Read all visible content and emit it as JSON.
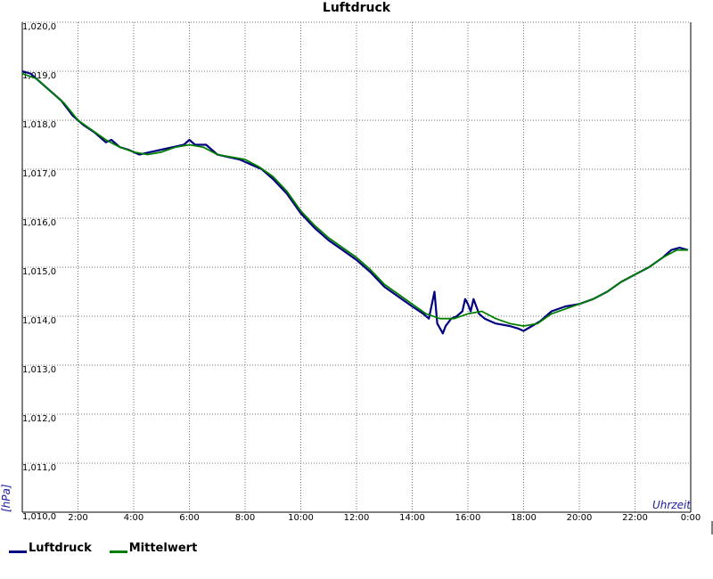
{
  "chart_data": {
    "type": "line",
    "title": "Luftdruck",
    "xlabel": "Uhrzeit",
    "ylabel": "[hPa]",
    "xlim": [
      0,
      24
    ],
    "ylim": [
      1010.0,
      1020.0
    ],
    "grid": true,
    "legend_position": "bottom-left",
    "x_ticks": [
      {
        "value": 2,
        "label": "2:00"
      },
      {
        "value": 4,
        "label": "4:00"
      },
      {
        "value": 6,
        "label": "6:00"
      },
      {
        "value": 8,
        "label": "8:00"
      },
      {
        "value": 10,
        "label": "10:00"
      },
      {
        "value": 12,
        "label": "12:00"
      },
      {
        "value": 14,
        "label": "14:00"
      },
      {
        "value": 16,
        "label": "16:00"
      },
      {
        "value": 18,
        "label": "18:00"
      },
      {
        "value": 20,
        "label": "20:00"
      },
      {
        "value": 22,
        "label": "22:00"
      },
      {
        "value": 24,
        "label": "0:00"
      }
    ],
    "y_ticks": [
      {
        "value": 1010.0,
        "label": "1,010,0"
      },
      {
        "value": 1011.0,
        "label": "1,011,0"
      },
      {
        "value": 1012.0,
        "label": "1,012,0"
      },
      {
        "value": 1013.0,
        "label": "1,013,0"
      },
      {
        "value": 1014.0,
        "label": "1,014,0"
      },
      {
        "value": 1015.0,
        "label": "1,015,0"
      },
      {
        "value": 1016.0,
        "label": "1,016,0"
      },
      {
        "value": 1017.0,
        "label": "1,017,0"
      },
      {
        "value": 1018.0,
        "label": "1,018,0"
      },
      {
        "value": 1019.0,
        "label": "1,019,0"
      },
      {
        "value": 1020.0,
        "label": "1,020,0"
      }
    ],
    "series": [
      {
        "name": "Luftdruck",
        "color": "#000080",
        "x": [
          0,
          0.3,
          0.6,
          1.0,
          1.4,
          1.8,
          2.2,
          2.6,
          3.0,
          3.2,
          3.5,
          3.8,
          4.2,
          4.6,
          5.0,
          5.4,
          5.8,
          6.0,
          6.2,
          6.6,
          7.0,
          7.4,
          7.8,
          8.2,
          8.6,
          9.0,
          9.5,
          10.0,
          10.5,
          11.0,
          11.5,
          12.0,
          12.5,
          13.0,
          13.5,
          14.0,
          14.4,
          14.6,
          14.8,
          14.9,
          15.0,
          15.1,
          15.2,
          15.4,
          15.6,
          15.8,
          15.9,
          16.0,
          16.1,
          16.2,
          16.4,
          16.6,
          17.0,
          17.5,
          17.8,
          18.0,
          18.3,
          18.6,
          19.0,
          19.5,
          20.0,
          20.5,
          21.0,
          21.5,
          22.0,
          22.5,
          23.0,
          23.3,
          23.6,
          23.9
        ],
        "values": [
          1019.0,
          1018.95,
          1018.8,
          1018.6,
          1018.4,
          1018.1,
          1017.9,
          1017.75,
          1017.55,
          1017.6,
          1017.45,
          1017.4,
          1017.3,
          1017.35,
          1017.4,
          1017.45,
          1017.5,
          1017.6,
          1017.5,
          1017.5,
          1017.3,
          1017.25,
          1017.2,
          1017.1,
          1017.0,
          1016.8,
          1016.5,
          1016.1,
          1015.8,
          1015.55,
          1015.35,
          1015.15,
          1014.9,
          1014.6,
          1014.4,
          1014.2,
          1014.05,
          1013.95,
          1014.5,
          1013.85,
          1013.75,
          1013.65,
          1013.8,
          1013.95,
          1014.0,
          1014.1,
          1014.35,
          1014.25,
          1014.1,
          1014.35,
          1014.05,
          1013.95,
          1013.85,
          1013.8,
          1013.75,
          1013.7,
          1013.8,
          1013.9,
          1014.1,
          1014.2,
          1014.25,
          1014.35,
          1014.5,
          1014.7,
          1014.85,
          1015.0,
          1015.2,
          1015.35,
          1015.4,
          1015.35
        ]
      },
      {
        "name": "Mittelwert",
        "color": "#008000",
        "x": [
          0,
          0.5,
          1.0,
          1.5,
          2.0,
          2.5,
          3.0,
          3.5,
          4.0,
          4.5,
          5.0,
          5.5,
          6.0,
          6.5,
          7.0,
          7.5,
          8.0,
          8.5,
          9.0,
          9.5,
          10.0,
          10.5,
          11.0,
          11.5,
          12.0,
          12.5,
          13.0,
          13.5,
          14.0,
          14.5,
          15.0,
          15.5,
          16.0,
          16.5,
          17.0,
          17.5,
          18.0,
          18.5,
          19.0,
          19.5,
          20.0,
          20.5,
          21.0,
          21.5,
          22.0,
          22.5,
          23.0,
          23.5,
          23.9
        ],
        "values": [
          1018.95,
          1018.85,
          1018.6,
          1018.35,
          1018.0,
          1017.8,
          1017.6,
          1017.45,
          1017.35,
          1017.3,
          1017.35,
          1017.45,
          1017.5,
          1017.45,
          1017.3,
          1017.25,
          1017.2,
          1017.05,
          1016.85,
          1016.55,
          1016.15,
          1015.85,
          1015.6,
          1015.4,
          1015.2,
          1014.95,
          1014.65,
          1014.45,
          1014.25,
          1014.05,
          1013.95,
          1013.95,
          1014.05,
          1014.1,
          1013.95,
          1013.85,
          1013.8,
          1013.85,
          1014.05,
          1014.15,
          1014.25,
          1014.35,
          1014.5,
          1014.7,
          1014.85,
          1015.0,
          1015.2,
          1015.35,
          1015.35
        ]
      }
    ]
  }
}
